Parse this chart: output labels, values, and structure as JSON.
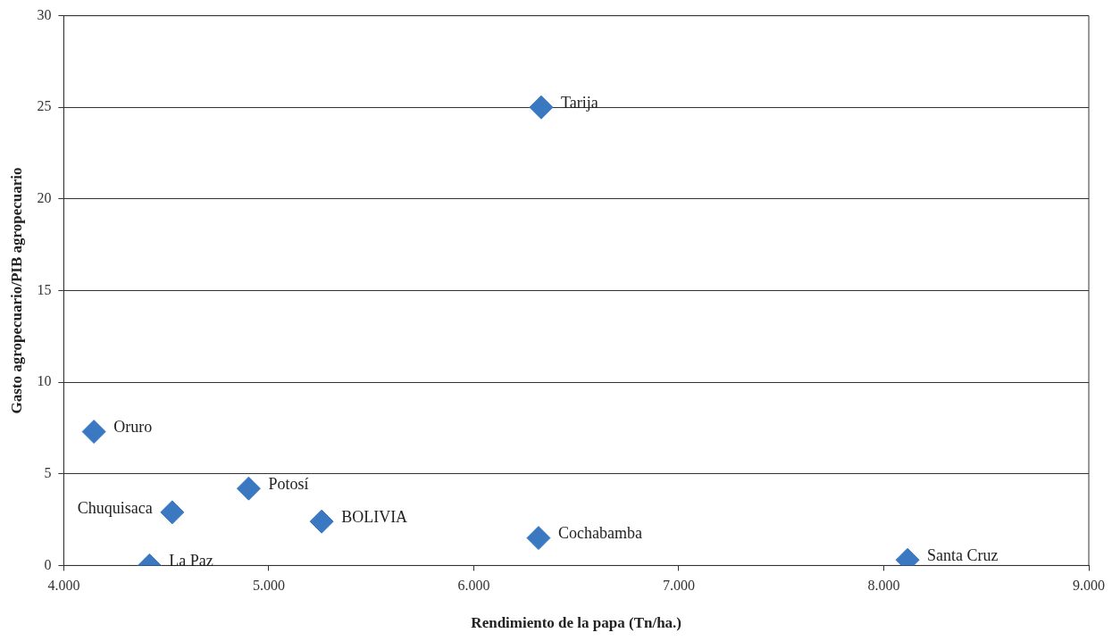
{
  "chart_data": {
    "type": "scatter",
    "xlabel": "Rendimiento de la papa (Tn/ha.)",
    "ylabel": "Gasto agropecuario/PIB agropecuario",
    "x": [
      6329,
      4147,
      4902,
      4529,
      5258,
      6316,
      4418,
      8116
    ],
    "values": [
      25,
      7.3,
      4.2,
      2.9,
      2.4,
      1.5,
      0,
      0.3
    ],
    "color": "#3a78c2",
    "marker": "diamond",
    "xlim": [
      4000,
      9000
    ],
    "xticks": [
      {
        "value": 4000,
        "label": "4.000"
      },
      {
        "value": 5000,
        "label": "5.000"
      },
      {
        "value": 6000,
        "label": "6.000"
      },
      {
        "value": 7000,
        "label": "7.000"
      },
      {
        "value": 8000,
        "label": "8.000"
      },
      {
        "value": 9000,
        "label": "9.000"
      }
    ],
    "ylim": [
      0,
      30
    ],
    "yticks": [
      0,
      5,
      10,
      15,
      20,
      25,
      30
    ],
    "grid": "y",
    "legend": false,
    "annotations": [
      {
        "text": "Tarija",
        "x": 6329,
        "y": 25
      },
      {
        "text": "Oruro",
        "x": 4147,
        "y": 7.3
      },
      {
        "text": "Potosí",
        "x": 4902,
        "y": 4.2
      },
      {
        "text": "Chuquisaca",
        "x": 4529,
        "y": 2.9
      },
      {
        "text": "BOLIVIA",
        "x": 5258,
        "y": 2.4
      },
      {
        "text": "Cochabamba",
        "x": 6316,
        "y": 1.5
      },
      {
        "text": "La Paz",
        "x": 4418,
        "y": 0
      },
      {
        "text": "Santa Cruz",
        "x": 8116,
        "y": 0.3
      }
    ]
  }
}
